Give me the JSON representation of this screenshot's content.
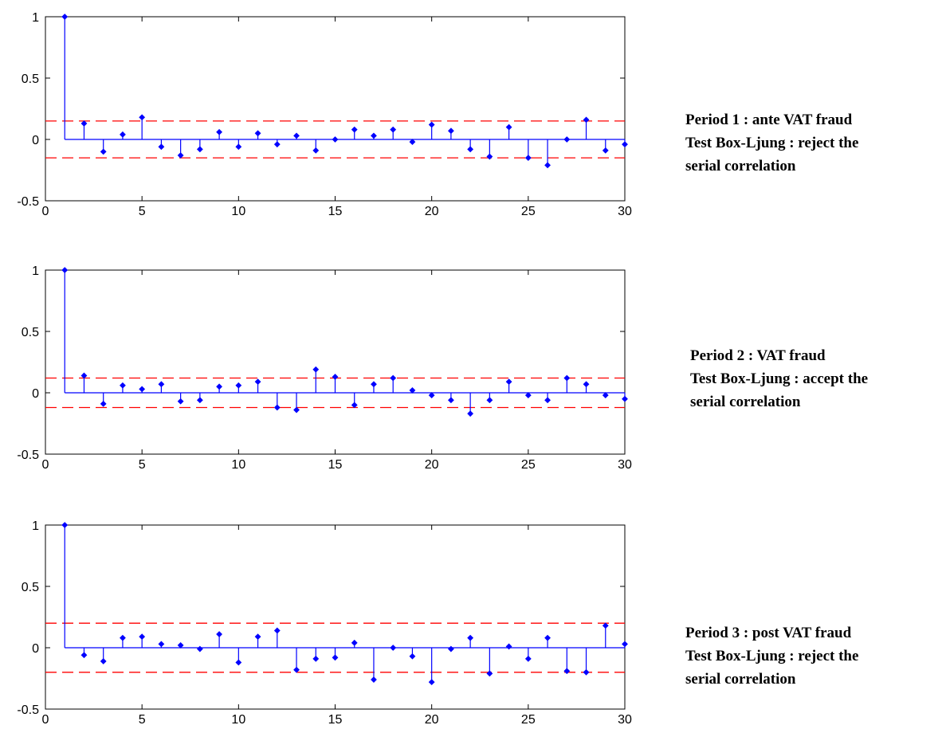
{
  "chart_data": [
    {
      "type": "stem",
      "x": [
        1,
        2,
        3,
        4,
        5,
        6,
        7,
        8,
        9,
        10,
        11,
        12,
        13,
        14,
        15,
        16,
        17,
        18,
        19,
        20,
        21,
        22,
        23,
        24,
        25,
        26,
        27,
        28,
        29,
        30
      ],
      "values": [
        1.0,
        0.13,
        -0.1,
        0.04,
        0.18,
        -0.06,
        -0.13,
        -0.08,
        0.06,
        -0.06,
        0.05,
        -0.04,
        0.03,
        -0.09,
        0.0,
        0.08,
        0.03,
        0.08,
        -0.02,
        0.12,
        0.07,
        -0.08,
        -0.14,
        0.1,
        -0.15,
        -0.21,
        0.0,
        0.16,
        -0.09,
        -0.04
      ],
      "bounds": [
        0.15,
        -0.15
      ],
      "xlim": [
        0,
        30
      ],
      "ylim": [
        -0.5,
        1
      ],
      "xticks": [
        "0",
        "5",
        "10",
        "15",
        "20",
        "25",
        "30"
      ],
      "yticks": [
        "1",
        "0.5",
        "0",
        "-0.5"
      ],
      "colors": {
        "stem": "#0000ff",
        "bound": "#ff0000"
      }
    },
    {
      "type": "stem",
      "x": [
        1,
        2,
        3,
        4,
        5,
        6,
        7,
        8,
        9,
        10,
        11,
        12,
        13,
        14,
        15,
        16,
        17,
        18,
        19,
        20,
        21,
        22,
        23,
        24,
        25,
        26,
        27,
        28,
        29,
        30
      ],
      "values": [
        1.0,
        0.14,
        -0.09,
        0.06,
        0.03,
        0.07,
        -0.07,
        -0.06,
        0.05,
        0.06,
        0.09,
        -0.12,
        -0.14,
        0.19,
        0.13,
        -0.1,
        0.07,
        0.12,
        0.02,
        -0.02,
        -0.06,
        -0.17,
        -0.06,
        0.09,
        -0.02,
        -0.06,
        0.12,
        0.07,
        -0.02,
        -0.05
      ],
      "bounds": [
        0.12,
        -0.12
      ],
      "xlim": [
        0,
        30
      ],
      "ylim": [
        -0.5,
        1
      ],
      "xticks": [
        "0",
        "5",
        "10",
        "15",
        "20",
        "25",
        "30"
      ],
      "yticks": [
        "1",
        "0.5",
        "0",
        "-0.5"
      ],
      "colors": {
        "stem": "#0000ff",
        "bound": "#ff0000"
      }
    },
    {
      "type": "stem",
      "x": [
        1,
        2,
        3,
        4,
        5,
        6,
        7,
        8,
        9,
        10,
        11,
        12,
        13,
        14,
        15,
        16,
        17,
        18,
        19,
        20,
        21,
        22,
        23,
        24,
        25,
        26,
        27,
        28,
        29,
        30
      ],
      "values": [
        1.0,
        -0.06,
        -0.11,
        0.08,
        0.09,
        0.03,
        0.02,
        -0.01,
        0.11,
        -0.12,
        0.09,
        0.14,
        -0.18,
        -0.09,
        -0.08,
        0.04,
        -0.26,
        0.0,
        -0.07,
        -0.28,
        -0.01,
        0.08,
        -0.21,
        0.01,
        -0.09,
        0.08,
        -0.19,
        -0.2,
        0.18,
        0.03
      ],
      "bounds": [
        0.2,
        -0.2
      ],
      "xlim": [
        0,
        30
      ],
      "ylim": [
        -0.5,
        1
      ],
      "xticks": [
        "0",
        "5",
        "10",
        "15",
        "20",
        "25",
        "30"
      ],
      "yticks": [
        "1",
        "0.5",
        "0",
        "-0.5"
      ],
      "colors": {
        "stem": "#0000ff",
        "bound": "#ff0000"
      }
    }
  ],
  "annotations": [
    {
      "period": "Period 1 : ante VAT fraud",
      "test": "Test Box-Ljung : reject the\nserial correlation"
    },
    {
      "period": "Period 2 : VAT fraud",
      "test": "Test Box-Ljung : accept the\nserial correlation"
    },
    {
      "period": "Period 3 : post VAT fraud",
      "test": "Test Box-Ljung : reject the\nserial correlation"
    }
  ]
}
